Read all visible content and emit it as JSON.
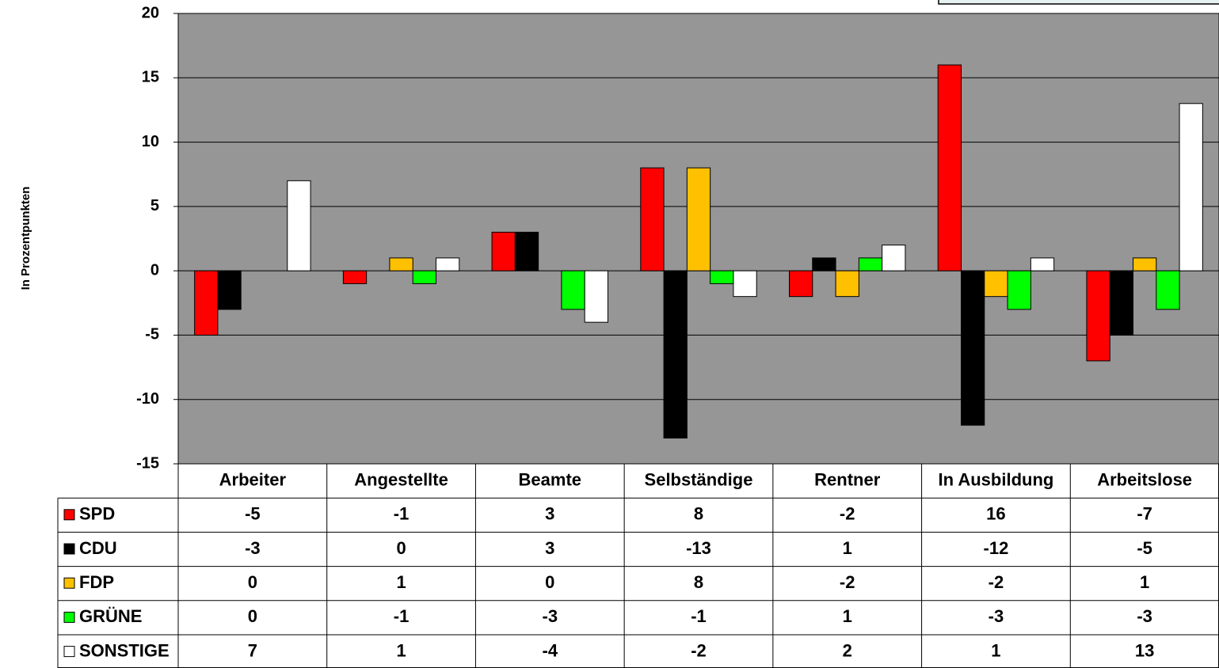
{
  "chart_data": {
    "type": "bar",
    "y_label": "In Prozentpunkten",
    "categories": [
      "Arbeiter",
      "Angestellte",
      "Beamte",
      "Selbständige",
      "Rentner",
      "In Ausbildung",
      "Arbeitslose"
    ],
    "series": [
      {
        "name": "SPD",
        "color": "#ff0000",
        "values": [
          -5,
          -1,
          3,
          8,
          -2,
          16,
          -7
        ]
      },
      {
        "name": "CDU",
        "color": "#000000",
        "values": [
          -3,
          0,
          3,
          -13,
          1,
          -12,
          -5
        ]
      },
      {
        "name": "FDP",
        "color": "#ffc000",
        "values": [
          0,
          1,
          0,
          8,
          -2,
          -2,
          1
        ]
      },
      {
        "name": "GRÜNE",
        "color": "#00ff00",
        "values": [
          0,
          -1,
          -3,
          -1,
          1,
          -3,
          -3
        ]
      },
      {
        "name": "SONSTIGE",
        "color": "#ffffff",
        "values": [
          7,
          1,
          -4,
          -2,
          2,
          1,
          13
        ]
      }
    ],
    "ylim": [
      -15,
      20
    ],
    "yticks": [
      20,
      15,
      10,
      5,
      0,
      -5,
      -10,
      -15
    ],
    "grid": true,
    "plot_background": "#969696",
    "legend": "table"
  }
}
